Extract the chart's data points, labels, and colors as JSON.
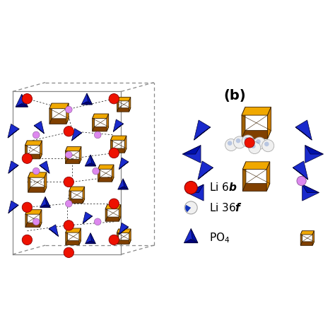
{
  "title_b": "(b)",
  "background_color": "#ffffff",
  "fig_width": 4.74,
  "fig_height": 4.74,
  "dpi": 100,
  "oct_face_top": "#f0a800",
  "oct_face_right": "#d08000",
  "oct_face_left": "#a06000",
  "oct_face_bottom": "#804000",
  "oct_edge": "#3a2000",
  "tet_face_front": "#1a2acc",
  "tet_face_right": "#0010aa",
  "tet_face_bottom": "#00007a",
  "tet_edge": "#000033",
  "li6b_color": "#ee1100",
  "li6b_edge": "#880000",
  "li36f_color": "#eeeeee",
  "li36f_edge": "#999999",
  "zr_color": "#dd88ee",
  "zr_edge": "#885599",
  "cell_color": "#888888"
}
